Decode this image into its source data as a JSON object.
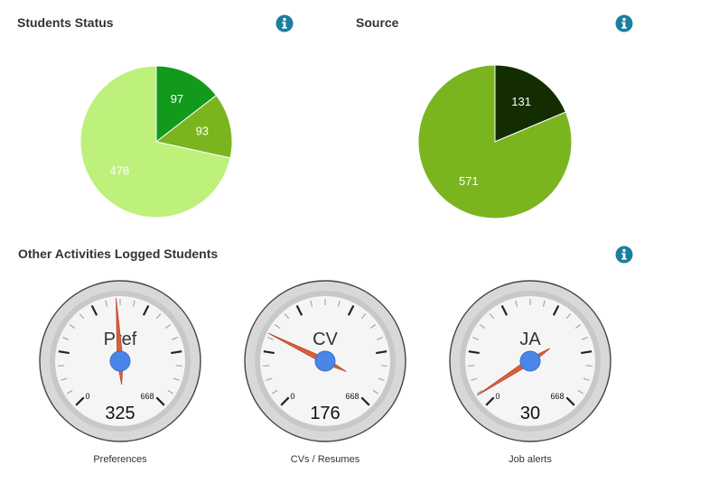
{
  "students_status": {
    "title": "Students Status",
    "info_icon": "info-icon"
  },
  "source": {
    "title": "Source",
    "info_icon": "info-icon"
  },
  "activities": {
    "title": "Other Activities Logged Students",
    "info_icon": "info-icon"
  },
  "colors": {
    "info": "#1a7f9e",
    "green_dark": "#129a1c",
    "green_mid": "#7ab520",
    "green_light": "#bef07c",
    "olive_dark": "#142d00",
    "needle": "#d9603c",
    "hub": "#4a86e8"
  },
  "chart_data": [
    {
      "type": "pie",
      "title": "Students Status",
      "slices": [
        {
          "value": 97,
          "label": "97",
          "color": "#129a1c"
        },
        {
          "value": 93,
          "label": "93",
          "color": "#7ab520"
        },
        {
          "value": 478,
          "label": "478",
          "color": "#bef07c"
        }
      ]
    },
    {
      "type": "pie",
      "title": "Source",
      "slices": [
        {
          "value": 131,
          "label": "131",
          "color": "#142d00"
        },
        {
          "value": 571,
          "label": "571",
          "color": "#7ab520"
        }
      ]
    }
  ],
  "gauges": [
    {
      "label": "Pref",
      "value": 325,
      "min": 0,
      "max": 668,
      "min_label": "0",
      "max_label": "668",
      "caption": "Preferences"
    },
    {
      "label": "CV",
      "value": 176,
      "min": 0,
      "max": 668,
      "min_label": "0",
      "max_label": "668",
      "caption": "CVs / Resumes"
    },
    {
      "label": "JA",
      "value": 30,
      "min": 0,
      "max": 668,
      "min_label": "0",
      "max_label": "668",
      "caption": "Job alerts"
    }
  ]
}
